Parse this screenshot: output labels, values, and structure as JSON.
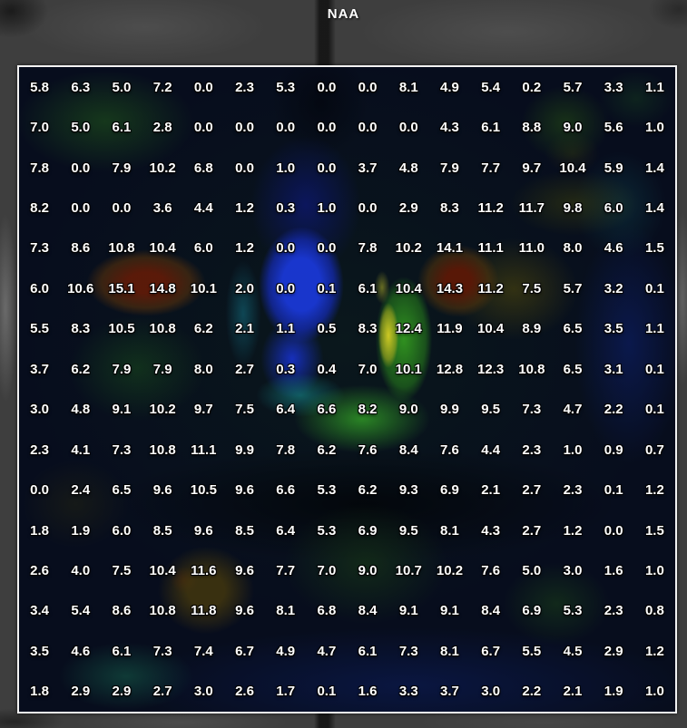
{
  "window": {
    "title": "NAA"
  },
  "colors": {
    "title_text": "#ffffff",
    "cell_text": "#ffffff",
    "frame_border": "#f2f2f2",
    "background_mri_gray": "#3e3e3e",
    "overlay_low_blue": "#1a38d6",
    "overlay_cyan": "#189696",
    "overlay_mid_green": "#2f9c23",
    "overlay_high_yellow": "#d4cc24",
    "overlay_max_red": "#5c1a08"
  },
  "chart_data": {
    "type": "heatmap",
    "title": "NAA",
    "rows": 16,
    "columns": 16,
    "value_format": "one-decimal",
    "legend_position": "none",
    "notes": "NAA metabolite value grid overlaid on colour-coded brain MR slice; blue=low, green=mid, yellow/red=high",
    "values": [
      [
        5.8,
        6.3,
        5.0,
        7.2,
        0.0,
        2.3,
        5.3,
        0.0,
        0.0,
        8.1,
        4.9,
        5.4,
        0.2,
        5.7,
        3.3,
        1.1
      ],
      [
        7.0,
        5.0,
        6.1,
        2.8,
        0.0,
        0.0,
        0.0,
        0.0,
        0.0,
        0.0,
        4.3,
        6.1,
        8.8,
        9.0,
        5.6,
        1.0
      ],
      [
        7.8,
        0.0,
        7.9,
        10.2,
        6.8,
        0.0,
        1.0,
        0.0,
        3.7,
        4.8,
        7.9,
        7.7,
        9.7,
        10.4,
        5.9,
        1.4
      ],
      [
        8.2,
        0.0,
        0.0,
        3.6,
        4.4,
        1.2,
        0.3,
        1.0,
        0.0,
        2.9,
        8.3,
        11.2,
        11.7,
        9.8,
        6.0,
        1.4
      ],
      [
        7.3,
        8.6,
        10.8,
        10.4,
        6.0,
        1.2,
        0.0,
        0.0,
        7.8,
        10.2,
        14.1,
        11.1,
        11.0,
        8.0,
        4.6,
        1.5
      ],
      [
        6.0,
        10.6,
        15.1,
        14.8,
        10.1,
        2.0,
        0.0,
        0.1,
        6.1,
        10.4,
        14.3,
        11.2,
        7.5,
        5.7,
        3.2,
        0.1
      ],
      [
        5.5,
        8.3,
        10.5,
        10.8,
        6.2,
        2.1,
        1.1,
        0.5,
        8.3,
        12.4,
        11.9,
        10.4,
        8.9,
        6.5,
        3.5,
        1.1
      ],
      [
        3.7,
        6.2,
        7.9,
        7.9,
        8.0,
        2.7,
        0.3,
        0.4,
        7.0,
        10.1,
        12.8,
        12.3,
        10.8,
        6.5,
        3.1,
        0.1
      ],
      [
        3.0,
        4.8,
        9.1,
        10.2,
        9.7,
        7.5,
        6.4,
        6.6,
        8.2,
        9.0,
        9.9,
        9.5,
        7.3,
        4.7,
        2.2,
        0.1
      ],
      [
        2.3,
        4.1,
        7.3,
        10.8,
        11.1,
        9.9,
        7.8,
        6.2,
        7.6,
        8.4,
        7.6,
        4.4,
        2.3,
        1.0,
        0.9,
        0.7
      ],
      [
        0.0,
        2.4,
        6.5,
        9.6,
        10.5,
        9.6,
        6.6,
        5.3,
        6.2,
        9.3,
        6.9,
        2.1,
        2.7,
        2.3,
        0.1,
        1.2
      ],
      [
        1.8,
        1.9,
        6.0,
        8.5,
        9.6,
        8.5,
        6.4,
        5.3,
        6.9,
        9.5,
        8.1,
        4.3,
        2.7,
        1.2,
        0.0,
        1.5
      ],
      [
        2.6,
        4.0,
        7.5,
        10.4,
        11.6,
        9.6,
        7.7,
        7.0,
        9.0,
        10.7,
        10.2,
        7.6,
        5.0,
        3.0,
        1.6,
        1.0
      ],
      [
        3.4,
        5.4,
        8.6,
        10.8,
        11.8,
        9.6,
        8.1,
        6.8,
        8.4,
        9.1,
        9.1,
        8.4,
        6.9,
        5.3,
        2.3,
        0.8
      ],
      [
        3.5,
        4.6,
        6.1,
        7.3,
        7.4,
        6.7,
        4.9,
        4.7,
        6.1,
        7.3,
        8.1,
        6.7,
        5.5,
        4.5,
        2.9,
        1.2
      ],
      [
        1.8,
        2.9,
        2.9,
        2.7,
        3.0,
        2.6,
        1.7,
        0.1,
        1.6,
        3.3,
        3.7,
        3.0,
        2.2,
        2.1,
        1.9,
        1.0
      ]
    ]
  }
}
